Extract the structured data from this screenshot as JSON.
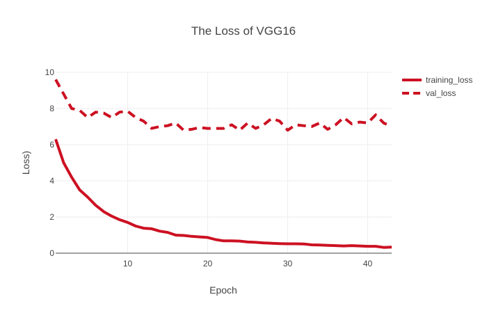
{
  "chart_data": {
    "type": "line",
    "title": "The Loss of VGG16",
    "xlabel": "Epoch",
    "ylabel": "Loss)",
    "xlim": [
      1,
      43
    ],
    "ylim": [
      0,
      10
    ],
    "x_ticks": [
      10,
      20,
      30,
      40
    ],
    "y_ticks": [
      0,
      2,
      4,
      6,
      8,
      10
    ],
    "grid": true,
    "legend_position": "top-right",
    "colors": {
      "line": "#cc1122"
    },
    "x": [
      1,
      2,
      3,
      4,
      5,
      6,
      7,
      8,
      9,
      10,
      11,
      12,
      13,
      14,
      15,
      16,
      17,
      18,
      19,
      20,
      21,
      22,
      23,
      24,
      25,
      26,
      27,
      28,
      29,
      30,
      31,
      32,
      33,
      34,
      35,
      36,
      37,
      38,
      39,
      40,
      41,
      42,
      43
    ],
    "series": [
      {
        "name": "training_loss",
        "dash": "solid",
        "values": [
          6.3,
          5.0,
          4.2,
          3.5,
          3.1,
          2.65,
          2.3,
          2.05,
          1.85,
          1.7,
          1.5,
          1.38,
          1.35,
          1.22,
          1.15,
          1.0,
          0.98,
          0.93,
          0.9,
          0.87,
          0.75,
          0.68,
          0.68,
          0.67,
          0.62,
          0.6,
          0.57,
          0.55,
          0.53,
          0.52,
          0.52,
          0.51,
          0.46,
          0.45,
          0.43,
          0.42,
          0.4,
          0.42,
          0.4,
          0.38,
          0.38,
          0.32,
          0.34
        ]
      },
      {
        "name": "val_loss",
        "dash": "dash",
        "values": [
          9.6,
          8.8,
          8.0,
          7.9,
          7.5,
          7.8,
          7.75,
          7.5,
          7.8,
          7.85,
          7.5,
          7.3,
          6.9,
          7.0,
          7.05,
          7.2,
          6.8,
          6.85,
          6.95,
          6.9,
          6.9,
          6.9,
          7.1,
          6.8,
          7.2,
          6.9,
          7.1,
          7.45,
          7.3,
          6.8,
          7.1,
          7.05,
          7.0,
          7.2,
          6.85,
          7.1,
          7.5,
          7.15,
          7.25,
          7.2,
          7.65,
          7.2,
          7.0
        ]
      }
    ]
  }
}
